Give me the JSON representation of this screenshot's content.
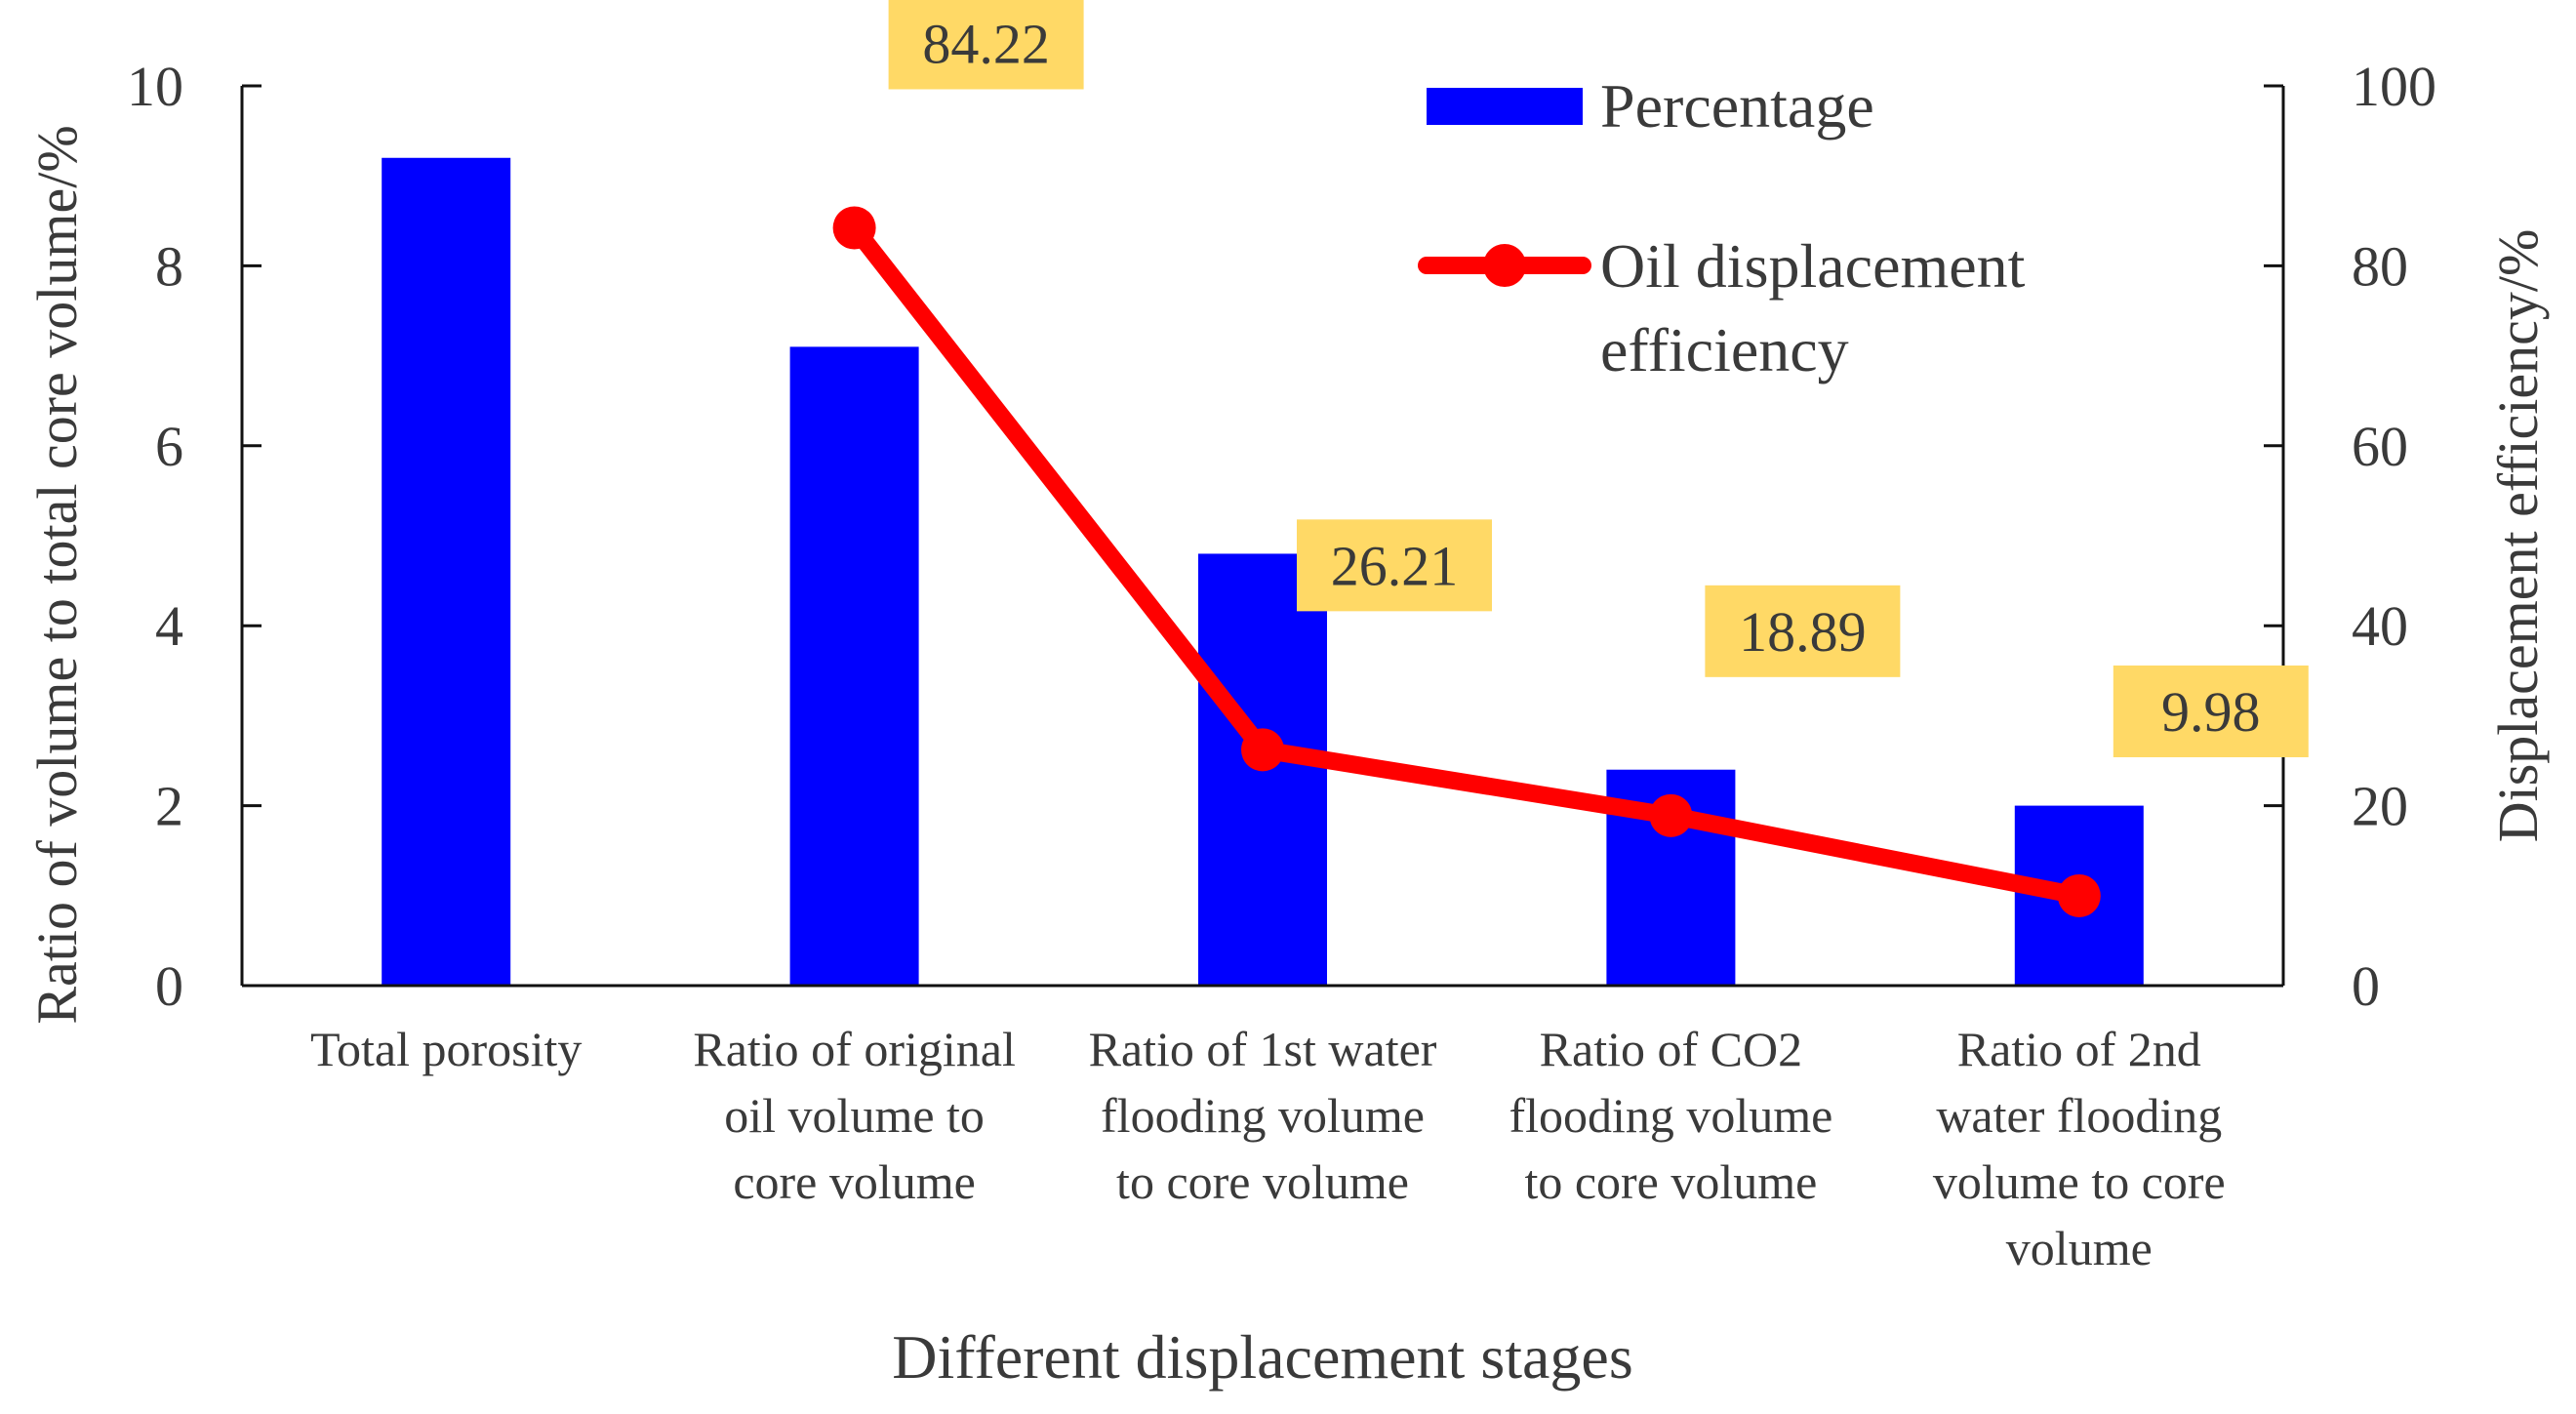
{
  "chart_data": {
    "type": "bar+line",
    "xlabel": "Different displacement stages",
    "ylabel_left": "Ratio of volume to total core volume/%",
    "ylabel_right": "Displacement efficiency/%",
    "ylim_left": [
      0,
      10
    ],
    "ylim_right": [
      0,
      100
    ],
    "yticks_left": [
      0,
      2,
      4,
      6,
      8,
      10
    ],
    "yticks_right": [
      0,
      20,
      40,
      60,
      80,
      100
    ],
    "grid": false,
    "legend_position": "top-right",
    "categories": [
      [
        "Total porosity"
      ],
      [
        "Ratio of original",
        "oil volume to",
        "core volume"
      ],
      [
        "Ratio of 1st water",
        "flooding volume",
        "to core volume"
      ],
      [
        "Ratio of CO2",
        "flooding volume",
        "to core volume"
      ],
      [
        "Ratio of 2nd",
        "water flooding",
        "volume to core",
        "volume"
      ]
    ],
    "series": [
      {
        "name": "Percentage",
        "kind": "bar",
        "axis": "left",
        "color": "#0000ff",
        "values": [
          9.2,
          7.1,
          4.8,
          2.4,
          2.0
        ]
      },
      {
        "name": "Oil displacement efficiency",
        "legend_lines": [
          "Oil displacement",
          "efficiency"
        ],
        "kind": "line",
        "axis": "right",
        "color": "#ff0000",
        "values": [
          null,
          84.22,
          26.21,
          18.89,
          9.98
        ],
        "labels": [
          "",
          "84.22",
          "26.21",
          "18.89",
          "9.98"
        ],
        "label_bg": "#ffd966"
      }
    ]
  }
}
